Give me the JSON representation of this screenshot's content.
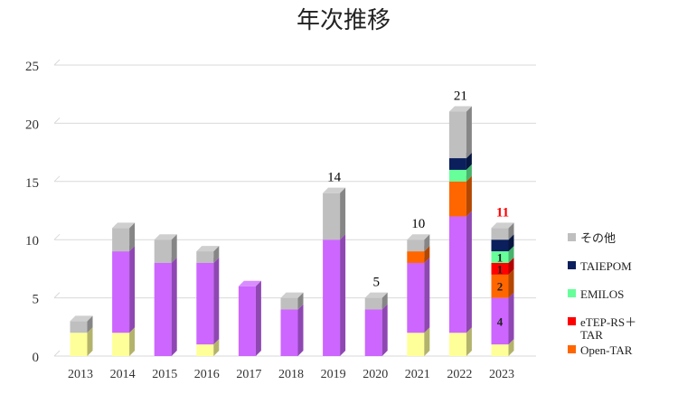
{
  "chart_data": {
    "type": "bar",
    "stacked": true,
    "three_d": true,
    "title": "年次推移",
    "categories": [
      "2013",
      "2014",
      "2015",
      "2016",
      "2017",
      "2018",
      "2019",
      "2020",
      "2021",
      "2022",
      "2023"
    ],
    "ylim": [
      0,
      25
    ],
    "yticks": [
      0,
      5,
      10,
      15,
      20,
      25
    ],
    "grid": true,
    "legend_position": "right",
    "series": [
      {
        "name": "",
        "color": "#FFFF99",
        "values": [
          2,
          2,
          0,
          1,
          0,
          0,
          0,
          0,
          2,
          2,
          1
        ]
      },
      {
        "name": "",
        "color": "#CC66FF",
        "values": [
          0,
          7,
          8,
          7,
          6,
          4,
          10,
          4,
          6,
          10,
          4
        ]
      },
      {
        "name": "Open-TAR",
        "color": "#FF6600",
        "values": [
          0,
          0,
          0,
          0,
          0,
          0,
          0,
          0,
          1,
          3,
          2
        ]
      },
      {
        "name": "eTEP-RS＋TAR",
        "color": "#FF0000",
        "values": [
          0,
          0,
          0,
          0,
          0,
          0,
          0,
          0,
          0,
          0,
          1
        ]
      },
      {
        "name": "EMILOS",
        "color": "#66FF99",
        "values": [
          0,
          0,
          0,
          0,
          0,
          0,
          0,
          0,
          0,
          1,
          1
        ]
      },
      {
        "name": "TAIEPOM",
        "color": "#0A1F5C",
        "values": [
          0,
          0,
          0,
          0,
          0,
          0,
          0,
          0,
          0,
          1,
          1
        ]
      },
      {
        "name": "その他",
        "color": "#BFBFBF",
        "values": [
          1,
          2,
          2,
          1,
          0,
          1,
          4,
          1,
          1,
          4,
          1
        ]
      }
    ],
    "total_labels": [
      {
        "category": "2019",
        "text": "14",
        "color": "#000000"
      },
      {
        "category": "2020",
        "text": "5",
        "color": "#000000"
      },
      {
        "category": "2021",
        "text": "10",
        "color": "#000000"
      },
      {
        "category": "2022",
        "text": "21",
        "color": "#000000"
      },
      {
        "category": "2023",
        "text": "11",
        "color": "#FF0000"
      }
    ],
    "segment_labels": [
      {
        "category": "2023",
        "series": "",
        "text": "4"
      },
      {
        "category": "2023",
        "series": "Open-TAR",
        "text": "2"
      },
      {
        "category": "2023",
        "series": "eTEP-RS＋TAR",
        "text": "1"
      },
      {
        "category": "2023",
        "series": "EMILOS",
        "text": "1"
      }
    ]
  }
}
